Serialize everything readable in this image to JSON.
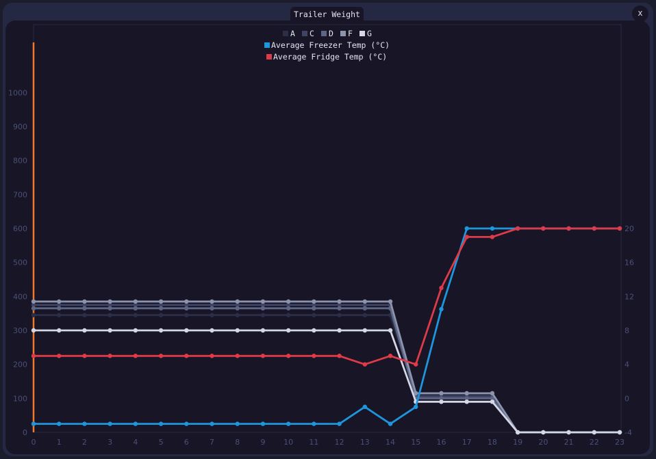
{
  "window": {
    "title": "Trailer Weight",
    "close_label": "x"
  },
  "colors": {
    "background": "#181526",
    "window": "#242842",
    "axis_text": "#4a5078",
    "accent_line": "#ee7a2a"
  },
  "chart_data": {
    "type": "line",
    "title": "Trailer Weight",
    "x": [
      0,
      1,
      2,
      3,
      4,
      5,
      6,
      7,
      8,
      9,
      10,
      11,
      12,
      13,
      14,
      15,
      16,
      17,
      18,
      19,
      20,
      21,
      22,
      23
    ],
    "x_ticks": [
      "0",
      "1",
      "2",
      "3",
      "4",
      "5",
      "6",
      "7",
      "8",
      "9",
      "10",
      "11",
      "12",
      "13",
      "14",
      "15",
      "16",
      "17",
      "18",
      "19",
      "20",
      "21",
      "22",
      "23"
    ],
    "y_left": {
      "range": [
        0,
        1200
      ],
      "ticks": [
        0,
        100,
        200,
        300,
        400,
        500,
        600,
        700,
        800,
        900,
        1000
      ]
    },
    "y_right": {
      "range": [
        -4,
        20
      ],
      "ticks": [
        -4,
        0,
        4,
        8,
        12,
        16,
        20
      ]
    },
    "legend_position": "top-center",
    "grid": false,
    "series": [
      {
        "name": "A",
        "axis": "left",
        "color": "#2b2e48",
        "values": [
          345,
          345,
          345,
          345,
          345,
          345,
          345,
          345,
          345,
          345,
          345,
          345,
          345,
          345,
          345,
          110,
          110,
          110,
          110,
          0,
          0,
          0,
          0,
          0
        ]
      },
      {
        "name": "C",
        "axis": "left",
        "color": "#3f4464",
        "values": [
          375,
          375,
          375,
          375,
          375,
          375,
          375,
          375,
          375,
          375,
          375,
          375,
          375,
          375,
          375,
          105,
          105,
          105,
          105,
          0,
          0,
          0,
          0,
          0
        ]
      },
      {
        "name": "D",
        "axis": "left",
        "color": "#5d6585",
        "values": [
          365,
          365,
          365,
          365,
          365,
          365,
          365,
          365,
          365,
          365,
          365,
          365,
          365,
          365,
          365,
          100,
          100,
          100,
          100,
          0,
          0,
          0,
          0,
          0
        ]
      },
      {
        "name": "F",
        "axis": "left",
        "color": "#8b93ad",
        "values": [
          385,
          385,
          385,
          385,
          385,
          385,
          385,
          385,
          385,
          385,
          385,
          385,
          385,
          385,
          385,
          115,
          115,
          115,
          115,
          0,
          0,
          0,
          0,
          0
        ]
      },
      {
        "name": "G",
        "axis": "left",
        "color": "#d3d7e6",
        "values": [
          300,
          300,
          300,
          300,
          300,
          300,
          300,
          300,
          300,
          300,
          300,
          300,
          300,
          300,
          300,
          90,
          90,
          90,
          90,
          0,
          0,
          0,
          0,
          0
        ]
      },
      {
        "name": "Average Freezer Temp (°C)",
        "axis": "right",
        "color": "#1e96dd",
        "values": [
          -3,
          -3,
          -3,
          -3,
          -3,
          -3,
          -3,
          -3,
          -3,
          -3,
          -3,
          -3,
          -3,
          -1,
          -3,
          -1,
          10.5,
          20,
          20,
          20,
          20,
          20,
          20,
          20
        ]
      },
      {
        "name": "Average Fridge Temp (°C)",
        "axis": "right",
        "color": "#de3a48",
        "values": [
          5,
          5,
          5,
          5,
          5,
          5,
          5,
          5,
          5,
          5,
          5,
          5,
          5,
          4,
          5,
          4,
          13,
          19,
          19,
          20,
          20,
          20,
          20,
          20
        ]
      }
    ]
  }
}
